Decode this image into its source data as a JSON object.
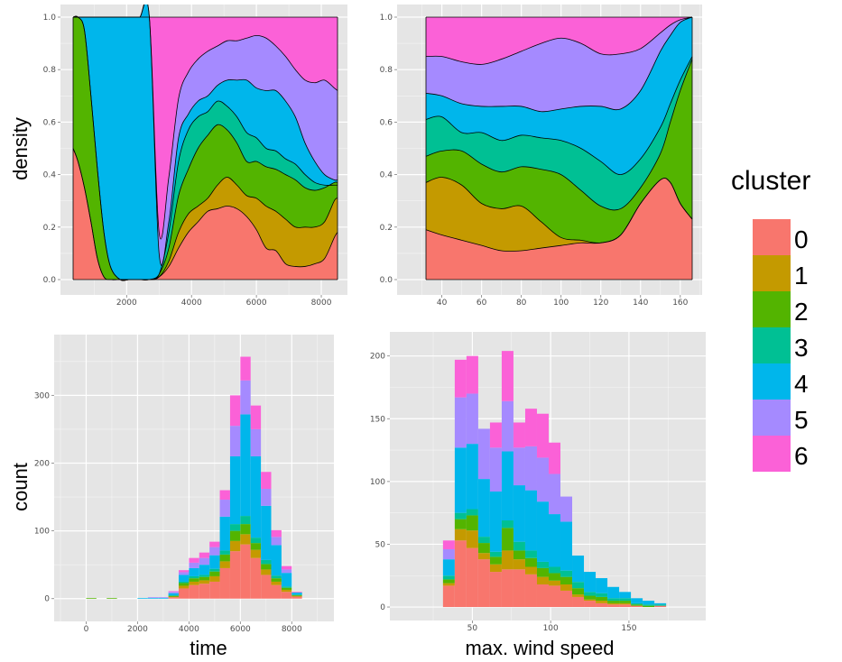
{
  "chart_data": [
    {
      "id": "density_time",
      "type": "area",
      "subtype": "stacked-density",
      "xlabel": "",
      "ylabel": "density",
      "xlim": [
        350,
        8500
      ],
      "ylim": [
        0,
        1
      ],
      "xticks": [
        2000,
        4000,
        6000,
        8000
      ],
      "yticks": [
        0.0,
        0.2,
        0.4,
        0.6,
        0.8,
        1.0
      ],
      "xtick_labels": [
        "2000",
        "4000",
        "6000",
        "8000"
      ],
      "ytick_labels": [
        "0.0",
        "0.2",
        "0.4",
        "0.6",
        "0.8",
        "1.0"
      ],
      "grid": true,
      "x": [
        350,
        500,
        700,
        900,
        1100,
        1300,
        1500,
        1800,
        2100,
        2400,
        2700,
        3000,
        3300,
        3600,
        3900,
        4200,
        4500,
        4800,
        5100,
        5400,
        5700,
        6000,
        6300,
        6600,
        6900,
        7200,
        7500,
        7800,
        8100,
        8400,
        8500
      ],
      "cumulative_upper_bounds": [
        {
          "name": "0",
          "values": [
            0.5,
            0.45,
            0.35,
            0.22,
            0.08,
            0.01,
            0.0,
            0.0,
            0.0,
            0.0,
            0.0,
            0.01,
            0.05,
            0.12,
            0.18,
            0.22,
            0.26,
            0.27,
            0.28,
            0.27,
            0.24,
            0.19,
            0.12,
            0.11,
            0.06,
            0.05,
            0.05,
            0.06,
            0.08,
            0.16,
            0.18
          ]
        },
        {
          "name": "1",
          "values": [
            0.5,
            0.45,
            0.35,
            0.22,
            0.08,
            0.01,
            0.0,
            0.0,
            0.0,
            0.0,
            0.0,
            0.01,
            0.07,
            0.18,
            0.25,
            0.28,
            0.31,
            0.36,
            0.39,
            0.36,
            0.32,
            0.31,
            0.28,
            0.26,
            0.23,
            0.2,
            0.2,
            0.2,
            0.22,
            0.3,
            0.31
          ]
        },
        {
          "name": "2",
          "values": [
            1.0,
            1.0,
            0.95,
            0.7,
            0.42,
            0.18,
            0.05,
            0.0,
            0.0,
            0.0,
            0.0,
            0.02,
            0.12,
            0.32,
            0.42,
            0.5,
            0.55,
            0.59,
            0.57,
            0.52,
            0.45,
            0.45,
            0.43,
            0.42,
            0.4,
            0.38,
            0.35,
            0.34,
            0.35,
            0.37,
            0.37
          ]
        },
        {
          "name": "3",
          "values": [
            1.0,
            1.0,
            0.95,
            0.7,
            0.42,
            0.18,
            0.05,
            0.0,
            0.0,
            0.0,
            0.0,
            0.02,
            0.18,
            0.45,
            0.57,
            0.62,
            0.64,
            0.68,
            0.66,
            0.62,
            0.56,
            0.54,
            0.5,
            0.49,
            0.46,
            0.44,
            0.4,
            0.37,
            0.36,
            0.36,
            0.36
          ]
        },
        {
          "name": "4",
          "values": [
            1.0,
            1.0,
            1.0,
            1.0,
            1.0,
            1.0,
            1.0,
            1.0,
            1.0,
            1.0,
            1.0,
            0.1,
            0.22,
            0.54,
            0.63,
            0.68,
            0.7,
            0.74,
            0.76,
            0.76,
            0.76,
            0.73,
            0.72,
            0.72,
            0.68,
            0.62,
            0.52,
            0.45,
            0.4,
            0.38,
            0.38
          ]
        },
        {
          "name": "5",
          "values": [
            1.0,
            1.0,
            1.0,
            1.0,
            1.0,
            1.0,
            1.0,
            1.0,
            1.0,
            1.0,
            1.0,
            0.18,
            0.39,
            0.69,
            0.79,
            0.84,
            0.87,
            0.89,
            0.91,
            0.91,
            0.92,
            0.93,
            0.92,
            0.89,
            0.85,
            0.8,
            0.76,
            0.75,
            0.76,
            0.73,
            0.72
          ]
        },
        {
          "name": "6",
          "values": [
            1.0,
            1.0,
            1.0,
            1.0,
            1.0,
            1.0,
            1.0,
            1.0,
            1.0,
            1.0,
            1.0,
            1.0,
            1.0,
            1.0,
            1.0,
            1.0,
            1.0,
            1.0,
            1.0,
            1.0,
            1.0,
            1.0,
            1.0,
            1.0,
            1.0,
            1.0,
            1.0,
            1.0,
            1.0,
            1.0,
            1.0
          ]
        }
      ],
      "notes": "Stacked conditional density; upper edge of each cluster band given cumulatively."
    },
    {
      "id": "density_wind",
      "type": "area",
      "subtype": "stacked-density",
      "xlabel": "",
      "ylabel": "",
      "xlim": [
        32,
        166
      ],
      "ylim": [
        0,
        1
      ],
      "xticks": [
        40,
        60,
        80,
        100,
        120,
        140,
        160
      ],
      "yticks": [
        0.0,
        0.2,
        0.4,
        0.6,
        0.8,
        1.0
      ],
      "xtick_labels": [
        "40",
        "60",
        "80",
        "100",
        "120",
        "140",
        "160"
      ],
      "ytick_labels": [
        "0.0",
        "0.2",
        "0.4",
        "0.6",
        "0.8",
        "1.0"
      ],
      "grid": true,
      "x": [
        32,
        40,
        50,
        60,
        70,
        80,
        90,
        100,
        110,
        120,
        130,
        140,
        150,
        155,
        160,
        166
      ],
      "cumulative_upper_bounds": [
        {
          "name": "0",
          "values": [
            0.19,
            0.17,
            0.15,
            0.13,
            0.11,
            0.11,
            0.12,
            0.13,
            0.14,
            0.14,
            0.17,
            0.29,
            0.38,
            0.37,
            0.29,
            0.23
          ]
        },
        {
          "name": "1",
          "values": [
            0.37,
            0.39,
            0.36,
            0.29,
            0.27,
            0.28,
            0.22,
            0.16,
            0.15,
            0.14,
            0.17,
            0.29,
            0.38,
            0.37,
            0.29,
            0.23
          ]
        },
        {
          "name": "2",
          "values": [
            0.47,
            0.49,
            0.49,
            0.44,
            0.41,
            0.43,
            0.42,
            0.4,
            0.34,
            0.28,
            0.27,
            0.35,
            0.48,
            0.6,
            0.72,
            0.84
          ]
        },
        {
          "name": "3",
          "values": [
            0.61,
            0.62,
            0.56,
            0.56,
            0.53,
            0.55,
            0.54,
            0.53,
            0.5,
            0.45,
            0.4,
            0.46,
            0.58,
            0.67,
            0.76,
            0.85
          ]
        },
        {
          "name": "4",
          "values": [
            0.71,
            0.7,
            0.67,
            0.66,
            0.66,
            0.66,
            0.64,
            0.65,
            0.66,
            0.66,
            0.65,
            0.72,
            0.87,
            0.93,
            0.98,
            1.0
          ]
        },
        {
          "name": "5",
          "values": [
            0.85,
            0.85,
            0.83,
            0.82,
            0.84,
            0.87,
            0.9,
            0.92,
            0.9,
            0.86,
            0.86,
            0.88,
            0.94,
            0.97,
            0.99,
            1.0
          ]
        },
        {
          "name": "6",
          "values": [
            1.0,
            1.0,
            1.0,
            1.0,
            1.0,
            1.0,
            1.0,
            1.0,
            1.0,
            1.0,
            1.0,
            1.0,
            1.0,
            1.0,
            1.0,
            1.0
          ]
        }
      ]
    },
    {
      "id": "hist_time",
      "type": "bar",
      "subtype": "stacked-histogram",
      "xlabel": "time",
      "ylabel": "count",
      "xlim": [
        -1000,
        9500
      ],
      "ylim": [
        -15,
        375
      ],
      "xticks": [
        0,
        2000,
        4000,
        6000,
        8000
      ],
      "yticks": [
        0,
        100,
        200,
        300
      ],
      "xtick_labels": [
        "0",
        "2000",
        "4000",
        "6000",
        "8000"
      ],
      "ytick_labels": [
        "0",
        "100",
        "200",
        "300"
      ],
      "grid": true,
      "bin_width": 400,
      "bin_starts": [
        0,
        400,
        800,
        1600,
        2000,
        2400,
        2800,
        3200,
        3600,
        4000,
        4400,
        4800,
        5200,
        5600,
        6000,
        6400,
        6800,
        7200,
        7600,
        8000
      ],
      "series": [
        {
          "name": "0",
          "values": [
            0,
            0,
            0,
            0,
            0,
            0,
            0,
            2,
            15,
            20,
            22,
            25,
            45,
            70,
            80,
            60,
            35,
            20,
            10,
            3
          ]
        },
        {
          "name": "1",
          "values": [
            0,
            0,
            0,
            0,
            0,
            0,
            0,
            1,
            4,
            5,
            5,
            8,
            10,
            15,
            15,
            12,
            8,
            5,
            3,
            1
          ]
        },
        {
          "name": "2",
          "values": [
            1,
            0,
            1,
            0,
            0,
            0,
            0,
            1,
            4,
            5,
            5,
            7,
            10,
            15,
            15,
            10,
            8,
            5,
            3,
            1
          ]
        },
        {
          "name": "3",
          "values": [
            0,
            0,
            0,
            0,
            0,
            0,
            0,
            1,
            2,
            3,
            3,
            4,
            6,
            10,
            12,
            8,
            6,
            4,
            2,
            1
          ]
        },
        {
          "name": "4",
          "values": [
            0,
            0,
            0,
            0,
            1,
            1,
            1,
            3,
            10,
            12,
            15,
            20,
            50,
            100,
            150,
            120,
            80,
            45,
            20,
            3
          ]
        },
        {
          "name": "5",
          "values": [
            0,
            0,
            0,
            0,
            0,
            1,
            1,
            2,
            4,
            8,
            10,
            12,
            25,
            45,
            50,
            40,
            25,
            12,
            5,
            0
          ]
        },
        {
          "name": "6",
          "values": [
            0,
            0,
            0,
            0,
            0,
            0,
            0,
            1,
            3,
            7,
            8,
            8,
            14,
            45,
            35,
            35,
            25,
            10,
            5,
            1
          ]
        }
      ]
    },
    {
      "id": "hist_wind",
      "type": "bar",
      "subtype": "stacked-histogram",
      "xlabel": "max. wind speed",
      "ylabel": "",
      "xlim": [
        10,
        195
      ],
      "ylim": [
        -5,
        212
      ],
      "xticks": [
        50,
        100,
        150
      ],
      "yticks": [
        0,
        50,
        100,
        150,
        200
      ],
      "xtick_labels": [
        "50",
        "100",
        "150"
      ],
      "ytick_labels": [
        "0",
        "50",
        "100",
        "150",
        "200"
      ],
      "grid": true,
      "bin_width": 7.5,
      "bin_starts": [
        31.25,
        38.75,
        46.25,
        53.75,
        61.25,
        68.75,
        76.25,
        83.75,
        91.25,
        98.75,
        106.25,
        113.75,
        121.25,
        128.75,
        136.25,
        143.75,
        151.25,
        158.75,
        166.25
      ],
      "series": [
        {
          "name": "0",
          "values": [
            17,
            53,
            47,
            38,
            28,
            30,
            30,
            26,
            18,
            17,
            13,
            8,
            5,
            3,
            2,
            2,
            1,
            0,
            1
          ]
        },
        {
          "name": "1",
          "values": [
            2,
            9,
            14,
            5,
            6,
            15,
            8,
            6,
            6,
            4,
            5,
            2,
            1,
            2,
            1,
            1,
            0,
            0,
            0
          ]
        },
        {
          "name": "2",
          "values": [
            3,
            8,
            12,
            8,
            6,
            18,
            7,
            7,
            7,
            6,
            6,
            5,
            3,
            3,
            2,
            2,
            1,
            1,
            0
          ]
        },
        {
          "name": "3",
          "values": [
            3,
            5,
            5,
            5,
            4,
            6,
            7,
            6,
            5,
            5,
            5,
            5,
            3,
            3,
            2,
            2,
            1,
            1,
            1
          ]
        },
        {
          "name": "4",
          "values": [
            13,
            52,
            52,
            46,
            48,
            55,
            45,
            48,
            48,
            42,
            39,
            21,
            16,
            12,
            9,
            5,
            4,
            3,
            1
          ]
        },
        {
          "name": "5",
          "values": [
            8,
            40,
            40,
            40,
            35,
            40,
            30,
            35,
            35,
            32,
            20,
            0,
            0,
            0,
            0,
            0,
            0,
            0,
            0
          ]
        },
        {
          "name": "6",
          "values": [
            7,
            30,
            30,
            0,
            20,
            40,
            20,
            30,
            35,
            25,
            0,
            0,
            0,
            0,
            0,
            0,
            0,
            0,
            0
          ]
        }
      ]
    }
  ],
  "legend": {
    "title": "cluster",
    "placement": "right",
    "items": [
      {
        "label": "0",
        "color": "#F8766D"
      },
      {
        "label": "1",
        "color": "#C49A00"
      },
      {
        "label": "2",
        "color": "#53B400"
      },
      {
        "label": "3",
        "color": "#00C094"
      },
      {
        "label": "4",
        "color": "#00B6EB"
      },
      {
        "label": "5",
        "color": "#A58AFF"
      },
      {
        "label": "6",
        "color": "#FB61D7"
      }
    ]
  },
  "colors": {
    "panel_background": "#E5E5E5",
    "grid": "#FFFFFF",
    "tick_text": "#4D4D4D"
  }
}
